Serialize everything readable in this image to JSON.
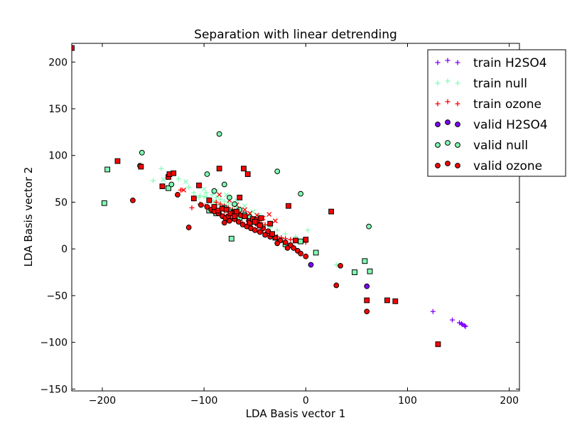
{
  "chart_data": {
    "type": "scatter",
    "title": "Separation with linear detrending",
    "xlabel": "LDA Basis vector 1",
    "ylabel": "LDA Basis vector 2",
    "xlim": [
      -230,
      210
    ],
    "ylim": [
      -152,
      220
    ],
    "xticks": [
      -200,
      -100,
      0,
      100,
      200
    ],
    "yticks": [
      -150,
      -100,
      -50,
      0,
      50,
      100,
      150,
      200
    ],
    "grid": false,
    "legend_position": "top-right",
    "colors": {
      "h2so4": "#8000ff",
      "null": "#80ffb4",
      "ozone": "#ff0000",
      "edge": "#000000"
    },
    "legend": [
      {
        "label": "train H2SO4",
        "series": "train_h2so4"
      },
      {
        "label": "train null",
        "series": "train_null"
      },
      {
        "label": "train ozone",
        "series": "train_ozone"
      },
      {
        "label": "valid H2SO4",
        "series": "valid_h2so4"
      },
      {
        "label": "valid null",
        "series": "valid_null"
      },
      {
        "label": "valid ozone",
        "series": "valid_ozone"
      }
    ],
    "series": {
      "train_h2so4": {
        "marker": "plus",
        "color": "#8000ff",
        "points": [
          [
            125,
            -67
          ],
          [
            144,
            -76
          ],
          [
            151,
            -79
          ],
          [
            153,
            -80
          ],
          [
            154,
            -81
          ],
          [
            156,
            -82
          ],
          [
            157,
            -83
          ]
        ]
      },
      "train_null": {
        "marker": "plus",
        "color": "#80ffb4",
        "points": [
          [
            -150,
            73
          ],
          [
            -142,
            86
          ],
          [
            -125,
            75
          ],
          [
            -115,
            66
          ],
          [
            -110,
            60
          ],
          [
            -104,
            57
          ],
          [
            -100,
            56
          ],
          [
            -97,
            55
          ],
          [
            -95,
            53
          ],
          [
            -93,
            52
          ],
          [
            -91,
            51
          ],
          [
            -89,
            50
          ],
          [
            -87,
            48
          ],
          [
            -85,
            47
          ],
          [
            -83,
            46
          ],
          [
            -81,
            45
          ],
          [
            -79,
            44
          ],
          [
            -77,
            43
          ],
          [
            -75,
            42
          ],
          [
            -73,
            41
          ],
          [
            -71,
            40
          ],
          [
            -69,
            38
          ],
          [
            -67,
            37
          ],
          [
            -65,
            36
          ],
          [
            -62,
            35
          ],
          [
            -60,
            34
          ],
          [
            -57,
            33
          ],
          [
            -55,
            31
          ],
          [
            -52,
            30
          ],
          [
            -50,
            28
          ],
          [
            -45,
            27
          ],
          [
            -40,
            25
          ],
          [
            -35,
            23
          ],
          [
            -28,
            20
          ],
          [
            -20,
            16
          ],
          [
            -10,
            13
          ],
          [
            2,
            20
          ],
          [
            30,
            -17
          ],
          [
            -105,
            55
          ],
          [
            -98,
            60
          ],
          [
            -92,
            58
          ],
          [
            -88,
            55
          ],
          [
            -84,
            53
          ],
          [
            -80,
            51
          ],
          [
            -76,
            49
          ],
          [
            -72,
            47
          ],
          [
            -68,
            45
          ],
          [
            -64,
            43
          ]
        ]
      },
      "train_ozone": {
        "marker": "plus",
        "color": "#ff0000",
        "points": [
          [
            -123,
            63
          ],
          [
            -112,
            44
          ],
          [
            -104,
            48
          ],
          [
            -99,
            46
          ],
          [
            -95,
            44
          ],
          [
            -92,
            42
          ],
          [
            -89,
            40
          ],
          [
            -86,
            38
          ],
          [
            -83,
            37
          ],
          [
            -80,
            36
          ],
          [
            -78,
            35
          ],
          [
            -76,
            34
          ],
          [
            -74,
            33
          ],
          [
            -72,
            32
          ],
          [
            -70,
            31
          ],
          [
            -68,
            30
          ],
          [
            -66,
            29
          ],
          [
            -64,
            28
          ],
          [
            -62,
            27
          ],
          [
            -60,
            26
          ],
          [
            -58,
            25
          ],
          [
            -56,
            24
          ],
          [
            -54,
            23
          ],
          [
            -52,
            22
          ],
          [
            -50,
            21
          ],
          [
            -48,
            20
          ],
          [
            -46,
            19
          ],
          [
            -44,
            18
          ],
          [
            -42,
            17
          ],
          [
            -40,
            16
          ],
          [
            -36,
            15
          ],
          [
            -32,
            14
          ],
          [
            -28,
            13
          ],
          [
            -24,
            12
          ],
          [
            -20,
            11
          ],
          [
            -15,
            10
          ],
          [
            -10,
            9
          ],
          [
            -5,
            8
          ],
          [
            0,
            7
          ],
          [
            -88,
            50
          ],
          [
            -84,
            48
          ],
          [
            -80,
            46
          ],
          [
            -76,
            44
          ],
          [
            -72,
            42
          ],
          [
            -68,
            40
          ],
          [
            -64,
            38
          ],
          [
            -60,
            36
          ],
          [
            -56,
            34
          ],
          [
            -52,
            32
          ],
          [
            -48,
            30
          ],
          [
            -44,
            28
          ],
          [
            -40,
            26
          ]
        ]
      },
      "train_null_x": {
        "marker": "x",
        "color": "#80ffb4",
        "points": [
          [
            -140,
            74
          ],
          [
            -118,
            72
          ],
          [
            -100,
            64
          ],
          [
            -88,
            62
          ],
          [
            -78,
            58
          ],
          [
            -68,
            52
          ],
          [
            -60,
            46
          ],
          [
            -52,
            40
          ],
          [
            -46,
            36
          ]
        ]
      },
      "train_ozone_x": {
        "marker": "x",
        "color": "#ff0000",
        "points": [
          [
            -120,
            63
          ],
          [
            -85,
            58
          ],
          [
            -75,
            52
          ],
          [
            -68,
            47
          ],
          [
            -60,
            42
          ],
          [
            -55,
            38
          ],
          [
            -48,
            36
          ],
          [
            -42,
            33
          ],
          [
            -36,
            37
          ],
          [
            -30,
            30
          ]
        ]
      },
      "valid_h2so4": {
        "marker": "circle",
        "color": "#8000ff",
        "points": [
          [
            5,
            -17
          ],
          [
            60,
            -40
          ]
        ]
      },
      "valid_null": {
        "marker": "circle",
        "color": "#80ffb4",
        "points": [
          [
            -85,
            123
          ],
          [
            -161,
            103
          ],
          [
            -163,
            89
          ],
          [
            -132,
            69
          ],
          [
            -97,
            80
          ],
          [
            -90,
            62
          ],
          [
            -80,
            69
          ],
          [
            -75,
            55
          ],
          [
            -70,
            48
          ],
          [
            -65,
            42
          ],
          [
            -60,
            37
          ],
          [
            -55,
            34
          ],
          [
            -28,
            83
          ],
          [
            -5,
            59
          ],
          [
            62,
            24
          ]
        ]
      },
      "valid_ozone": {
        "marker": "circle",
        "color": "#ff0000",
        "points": [
          [
            -170,
            52
          ],
          [
            -126,
            58
          ],
          [
            -115,
            23
          ],
          [
            -103,
            47
          ],
          [
            -97,
            45
          ],
          [
            -93,
            42
          ],
          [
            -90,
            40
          ],
          [
            -86,
            38
          ],
          [
            -82,
            35
          ],
          [
            -79,
            33
          ],
          [
            -75,
            30
          ],
          [
            -70,
            32
          ],
          [
            -66,
            29
          ],
          [
            -62,
            26
          ],
          [
            -58,
            24
          ],
          [
            -54,
            22
          ],
          [
            -50,
            20
          ],
          [
            -45,
            18
          ],
          [
            -40,
            15
          ],
          [
            -35,
            13
          ],
          [
            -30,
            12
          ],
          [
            -25,
            9
          ],
          [
            -20,
            7
          ],
          [
            -15,
            4
          ],
          [
            -12,
            1
          ],
          [
            -8,
            -2
          ],
          [
            -5,
            -5
          ],
          [
            0,
            -8
          ],
          [
            30,
            -39
          ],
          [
            34,
            -18
          ],
          [
            60,
            -67
          ],
          [
            -80,
            28
          ],
          [
            -76,
            35
          ],
          [
            -72,
            39
          ],
          [
            -64,
            36
          ],
          [
            -56,
            30
          ],
          [
            -48,
            27
          ],
          [
            -42,
            22
          ],
          [
            -37,
            19
          ],
          [
            -28,
            6
          ],
          [
            -18,
            1
          ]
        ]
      },
      "valid_null_sq": {
        "marker": "square",
        "color": "#80ffb4",
        "points": [
          [
            -198,
            49
          ],
          [
            -195,
            85
          ],
          [
            -135,
            65
          ],
          [
            -73,
            11
          ],
          [
            -95,
            41
          ],
          [
            -88,
            38
          ],
          [
            -80,
            44
          ],
          [
            -74,
            40
          ],
          [
            -65,
            33
          ],
          [
            -30,
            12
          ],
          [
            -20,
            5
          ],
          [
            -5,
            8
          ],
          [
            10,
            -4
          ],
          [
            48,
            -25
          ],
          [
            58,
            -13
          ],
          [
            63,
            -24
          ]
        ]
      },
      "valid_ozone_sq": {
        "marker": "square",
        "color": "#ff0000",
        "points": [
          [
            -230,
            215
          ],
          [
            -185,
            94
          ],
          [
            -162,
            88
          ],
          [
            -141,
            67
          ],
          [
            -135,
            77
          ],
          [
            -134,
            80
          ],
          [
            -130,
            81
          ],
          [
            -110,
            54
          ],
          [
            -105,
            68
          ],
          [
            -95,
            52
          ],
          [
            -85,
            86
          ],
          [
            -90,
            45
          ],
          [
            -86,
            41
          ],
          [
            -82,
            43
          ],
          [
            -78,
            42
          ],
          [
            -74,
            38
          ],
          [
            -70,
            35
          ],
          [
            -65,
            55
          ],
          [
            -61,
            86
          ],
          [
            -57,
            80
          ],
          [
            -55,
            28
          ],
          [
            -52,
            32
          ],
          [
            -48,
            31
          ],
          [
            -44,
            33
          ],
          [
            -35,
            27
          ],
          [
            -33,
            16
          ],
          [
            -17,
            46
          ],
          [
            -10,
            9
          ],
          [
            0,
            10
          ],
          [
            25,
            40
          ],
          [
            60,
            -55
          ],
          [
            80,
            -55
          ],
          [
            88,
            -56
          ],
          [
            130,
            -102
          ],
          [
            -68,
            40
          ],
          [
            -60,
            35
          ],
          [
            -50,
            29
          ],
          [
            -45,
            25
          ]
        ]
      }
    },
    "draw_order": [
      "train_h2so4",
      "train_null",
      "train_null_x",
      "train_ozone",
      "train_ozone_x",
      "valid_null_sq",
      "valid_null",
      "valid_ozone",
      "valid_ozone_sq",
      "valid_h2so4"
    ]
  }
}
